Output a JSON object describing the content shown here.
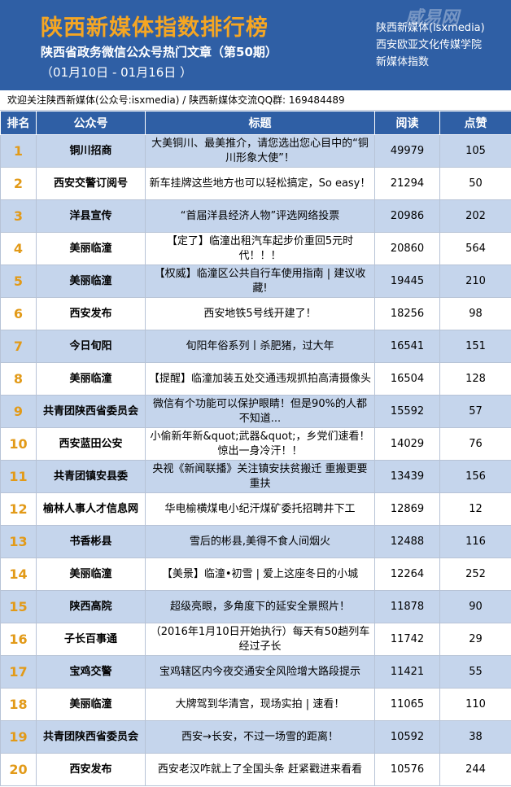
{
  "header": {
    "title": "陕西新媒体指数排行榜",
    "subtitle": "陕西省政务微信公众号热门文章（第50期）",
    "date_range": "（01月10日 - 01月16日 ）",
    "right_lines": [
      "陕西新媒体(isxmedia)",
      "西安欧亚文化传媒学院",
      "新媒体指数"
    ],
    "watermark": "威易网"
  },
  "notice": "欢迎关注陕西新媒体(公众号:isxmedia)  /  陕西新媒体交流QQ群: 169484489",
  "table": {
    "headers": [
      "排名",
      "公众号",
      "标题",
      "阅读",
      "点赞"
    ],
    "rows": [
      {
        "rank": "1",
        "account": "铜川招商",
        "title": "大美铜川、最美推介，请您选出您心目中的“铜川形象大使”！",
        "reads": "49979",
        "likes": "105"
      },
      {
        "rank": "2",
        "account": "西安交警订阅号",
        "title": "新车挂牌这些地方也可以轻松搞定，So easy！",
        "reads": "21294",
        "likes": "50"
      },
      {
        "rank": "3",
        "account": "洋县宣传",
        "title": "“首届洋县经济人物”评选网络投票",
        "reads": "20986",
        "likes": "202"
      },
      {
        "rank": "4",
        "account": "美丽临潼",
        "title": "【定了】临潼出租汽车起步价重回5元时代！！！",
        "reads": "20860",
        "likes": "564"
      },
      {
        "rank": "5",
        "account": "美丽临潼",
        "title": "【权威】临潼区公共自行车使用指南 | 建议收藏!",
        "reads": "19445",
        "likes": "210"
      },
      {
        "rank": "6",
        "account": "西安发布",
        "title": "西安地铁5号线开建了！",
        "reads": "18256",
        "likes": "98"
      },
      {
        "rank": "7",
        "account": "今日旬阳",
        "title": "旬阳年俗系列丨杀肥猪，过大年",
        "reads": "16541",
        "likes": "151"
      },
      {
        "rank": "8",
        "account": "美丽临潼",
        "title": "【提醒】临潼加装五处交通违规抓拍高清摄像头",
        "reads": "16504",
        "likes": "128"
      },
      {
        "rank": "9",
        "account": "共青团陕西省委员会",
        "title": "微信有个功能可以保护眼睛！但是90%的人都不知道...",
        "reads": "15592",
        "likes": "57"
      },
      {
        "rank": "10",
        "account": "西安蓝田公安",
        "title": "小偷新年新&quot;武器&quot;，乡党们速看！惊出一身冷汗！！",
        "reads": "14029",
        "likes": "76"
      },
      {
        "rank": "11",
        "account": "共青团镇安县委",
        "title": "央视《新闻联播》关注镇安扶贫搬迁 重搬更要重扶",
        "reads": "13439",
        "likes": "156"
      },
      {
        "rank": "12",
        "account": "榆林人事人才信息网",
        "title": "华电榆横煤电小纪汗煤矿委托招聘井下工",
        "reads": "12869",
        "likes": "12"
      },
      {
        "rank": "13",
        "account": "书香彬县",
        "title": "雪后的彬县,美得不食人间烟火",
        "reads": "12488",
        "likes": "116"
      },
      {
        "rank": "14",
        "account": "美丽临潼",
        "title": "【美景】临潼•初雪 | 爱上这座冬日的小城",
        "reads": "12264",
        "likes": "252"
      },
      {
        "rank": "15",
        "account": "陕西高院",
        "title": "超级亮眼，多角度下的延安全景照片！",
        "reads": "11878",
        "likes": "90"
      },
      {
        "rank": "16",
        "account": "子长百事通",
        "title": "（2016年1月10日开始执行）每天有50趟列车经过子长",
        "reads": "11742",
        "likes": "29"
      },
      {
        "rank": "17",
        "account": "宝鸡交警",
        "title": "宝鸡辖区内今夜交通安全风险增大路段提示",
        "reads": "11421",
        "likes": "55"
      },
      {
        "rank": "18",
        "account": "美丽临潼",
        "title": "大牌驾到华清宫，现场实拍 | 速看！",
        "reads": "11065",
        "likes": "110"
      },
      {
        "rank": "19",
        "account": "共青团陕西省委员会",
        "title": "西安→长安，不过一场雪的距离！",
        "reads": "10592",
        "likes": "38"
      },
      {
        "rank": "20",
        "account": "西安发布",
        "title": "西安老汉咋就上了全国头条 赶紧戳进来看看",
        "reads": "10576",
        "likes": "244"
      }
    ]
  }
}
